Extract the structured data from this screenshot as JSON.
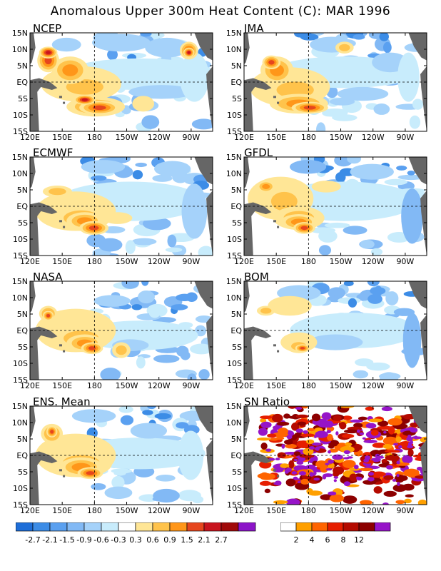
{
  "title": "Anomalous Upper 300m Heat Content (C): MAR 1996",
  "axes": {
    "lat_labels": [
      "15N",
      "10N",
      "5N",
      "EQ",
      "5S",
      "10S",
      "15S"
    ],
    "lon_labels": [
      "120E",
      "150E",
      "180",
      "150W",
      "120W",
      "90W"
    ]
  },
  "panels": [
    {
      "name": "NCEP"
    },
    {
      "name": "JMA"
    },
    {
      "name": "ECMWF"
    },
    {
      "name": "GFDL"
    },
    {
      "name": "NASA"
    },
    {
      "name": "BOM"
    },
    {
      "name": "ENS. Mean"
    },
    {
      "name": "SN Ratio"
    }
  ],
  "colorbar_anomaly": {
    "labels": [
      "-2.7",
      "-2.1",
      "-1.5",
      "-0.9",
      "-0.6",
      "-0.3",
      "0.3",
      "0.6",
      "0.9",
      "1.5",
      "2.1",
      "2.7"
    ],
    "colors": [
      "#1e6ed8",
      "#3c8ce6",
      "#5aa0f0",
      "#82b9f5",
      "#a5d2fa",
      "#c8ecfc",
      "#ffffff",
      "#ffe696",
      "#ffc34b",
      "#ff9619",
      "#e6461e",
      "#c8141e",
      "#a00a0a",
      "#8c14c8"
    ]
  },
  "colorbar_ratio": {
    "labels": [
      "2",
      "4",
      "6",
      "8",
      "12"
    ],
    "colors": [
      "#ffffff",
      "#ffa000",
      "#ff6400",
      "#e61e00",
      "#b40a00",
      "#8c0000",
      "#9614c8"
    ]
  },
  "land_color": "#666666"
}
